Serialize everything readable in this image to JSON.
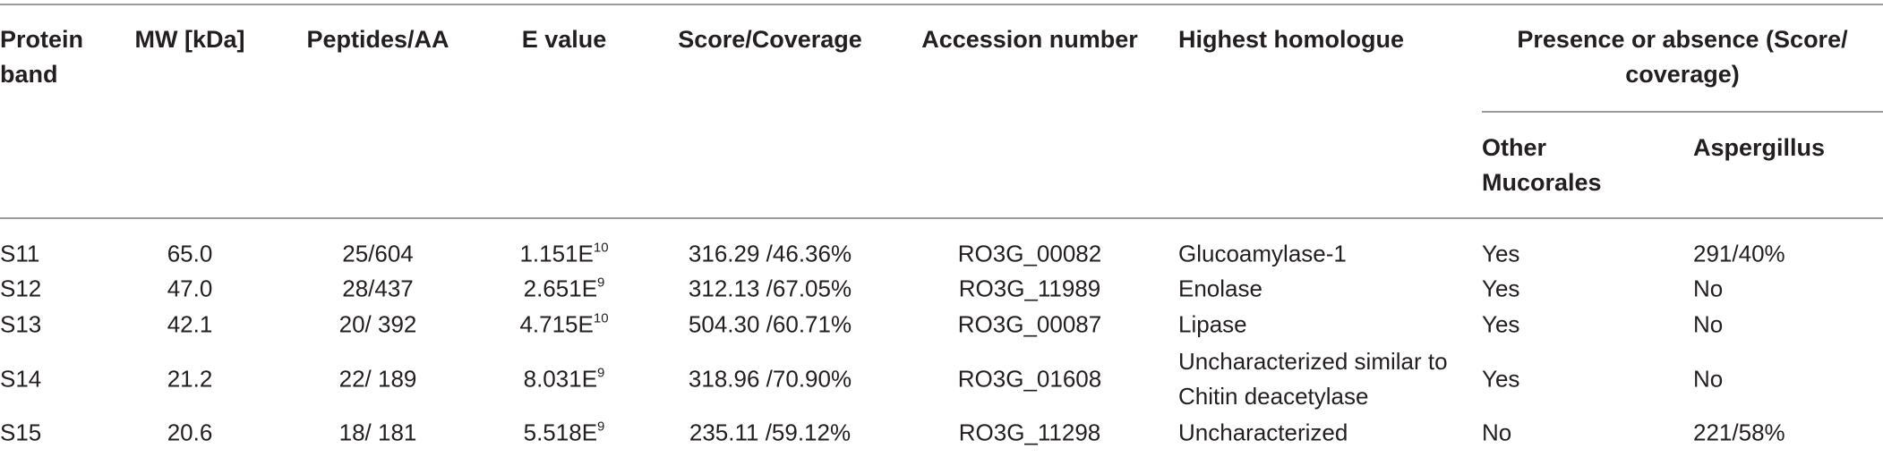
{
  "table": {
    "headers": [
      "Protein band",
      "MW [kDa]",
      "Peptides/AA",
      "E value",
      "Score/Coverage",
      "Accession number",
      "Highest homologue"
    ],
    "group_header": "Presence or absence (Score/ coverage)",
    "sub_headers": [
      "Other Mucorales",
      "Aspergillus"
    ],
    "rows": [
      [
        "S11",
        "65.0",
        "25/604",
        {
          "base": "1.151E",
          "exp": "10"
        },
        "316.29 /46.36%",
        "RO3G_00082",
        "Glucoamylase-1",
        "Yes",
        "291/40%"
      ],
      [
        "S12",
        "47.0",
        "28/437",
        {
          "base": "2.651E",
          "exp": "9"
        },
        "312.13 /67.05%",
        "RO3G_11989",
        "Enolase",
        "Yes",
        "No"
      ],
      [
        "S13",
        "42.1",
        "20/ 392",
        {
          "base": "4.715E",
          "exp": "10"
        },
        "504.30 /60.71%",
        "RO3G_00087",
        "Lipase",
        "Yes",
        "No"
      ],
      [
        "S14",
        "21.2",
        "22/ 189",
        {
          "base": "8.031E",
          "exp": "9"
        },
        "318.96 /70.90%",
        "RO3G_01608",
        "Uncharacterized similar to Chitin deacetylase",
        "Yes",
        "No"
      ],
      [
        "S15",
        "20.6",
        "18/ 181",
        {
          "base": "5.518E",
          "exp": "9"
        },
        "235.11 /59.12%",
        "RO3G_11298",
        "Uncharacterized",
        "No",
        "221/58%"
      ]
    ]
  }
}
